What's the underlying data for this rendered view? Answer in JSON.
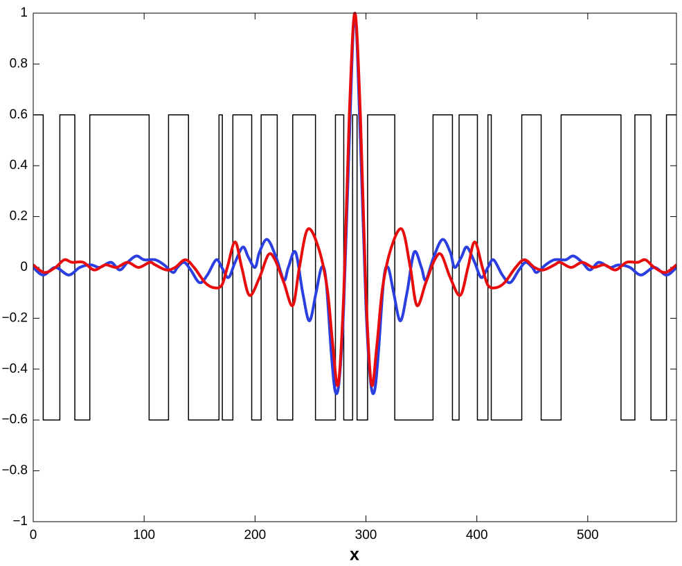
{
  "chart_data": {
    "type": "line",
    "xlabel": "x",
    "xlim": [
      0,
      580
    ],
    "ylim": [
      -1,
      1
    ],
    "xticks": [
      0,
      100,
      200,
      300,
      400,
      500
    ],
    "yticks": [
      {
        "value": -1,
        "label": "−1"
      },
      {
        "value": -0.8,
        "label": "−0.8"
      },
      {
        "value": -0.6,
        "label": "−0.6"
      },
      {
        "value": -0.4,
        "label": "−0.4"
      },
      {
        "value": -0.2,
        "label": "−0.2"
      },
      0,
      0.2,
      0.4,
      0.6,
      0.8,
      1
    ],
    "grid": false,
    "series": [
      {
        "color": "#000000",
        "width": 1.5,
        "smooth": false,
        "x": [
          0,
          9,
          9,
          24,
          24,
          37.5,
          37.5,
          51,
          51,
          104.5,
          104.5,
          122,
          122,
          140,
          140,
          167.5,
          167.5,
          170.5,
          170.5,
          180,
          180,
          197,
          197,
          205.5,
          205.5,
          220,
          220,
          234,
          234,
          254.5,
          254.5,
          272.5,
          272.5,
          280,
          280,
          288,
          288,
          292,
          292,
          301.5,
          301.5,
          326,
          326,
          360.5,
          360.5,
          378,
          378,
          384,
          384,
          400.5,
          400.5,
          410,
          410,
          413,
          413,
          440.5,
          440.5,
          458,
          458,
          476,
          476,
          530,
          530,
          542.5,
          542.5,
          557,
          557,
          571,
          571,
          580
        ],
        "values": [
          0.6,
          0.6,
          -0.6,
          -0.6,
          0.6,
          0.6,
          -0.6,
          -0.6,
          0.6,
          0.6,
          -0.6,
          -0.6,
          0.6,
          0.6,
          -0.6,
          -0.6,
          0.6,
          0.6,
          -0.6,
          -0.6,
          0.6,
          0.6,
          -0.6,
          -0.6,
          0.6,
          0.6,
          -0.6,
          -0.6,
          0.6,
          0.6,
          -0.6,
          -0.6,
          0.6,
          0.6,
          -0.6,
          -0.6,
          0.6,
          0.6,
          -0.6,
          -0.6,
          0.6,
          0.6,
          -0.6,
          -0.6,
          0.6,
          0.6,
          -0.6,
          -0.6,
          0.6,
          0.6,
          -0.6,
          -0.6,
          0.6,
          0.6,
          -0.6,
          -0.6,
          0.6,
          0.6,
          -0.6,
          -0.6,
          0.6,
          0.6,
          -0.6,
          -0.6,
          0.6,
          0.6,
          -0.6,
          -0.6,
          0.6,
          0.6
        ]
      },
      {
        "color": "#2b3fe0",
        "width": 4,
        "smooth": true,
        "x": [
          0,
          9,
          20,
          32,
          42,
          52,
          60,
          70,
          78,
          85,
          93,
          100,
          110,
          118,
          126,
          130,
          136,
          142,
          150,
          157,
          165,
          170,
          176,
          182,
          189,
          194,
          200,
          204,
          211,
          219,
          226,
          230,
          236.5,
          243,
          249,
          255,
          260,
          264,
          269,
          272.5,
          276,
          280,
          285,
          290,
          295,
          300,
          304,
          307.5,
          311,
          316,
          320,
          325,
          331,
          337,
          343.5,
          350,
          354,
          361,
          369,
          376,
          380,
          386,
          391,
          398,
          404,
          410,
          415,
          423,
          430,
          438,
          444,
          450,
          454,
          462,
          470,
          480,
          487,
          495,
          502,
          510,
          520,
          528,
          538,
          548,
          560,
          571,
          580
        ],
        "values": [
          0,
          -0.03,
          0,
          -0.03,
          0,
          0.01,
          0,
          0.02,
          -0.01,
          0.02,
          0.045,
          0.03,
          0.03,
          0.01,
          -0.02,
          0,
          0.02,
          -0.01,
          -0.06,
          -0.03,
          0.03,
          0,
          -0.04,
          0.02,
          0.08,
          0.04,
          0,
          0.06,
          0.11,
          0.04,
          -0.05,
          0,
          0.06,
          -0.1,
          -0.21,
          -0.1,
          0,
          -0.05,
          -0.35,
          -0.49,
          -0.44,
          -0.15,
          0.5,
          1,
          0.5,
          -0.15,
          -0.44,
          -0.49,
          -0.35,
          -0.05,
          0,
          -0.1,
          -0.21,
          -0.1,
          0.06,
          0,
          -0.05,
          0.04,
          0.11,
          0.06,
          0,
          0.04,
          0.08,
          0.02,
          -0.04,
          0,
          0.03,
          -0.03,
          -0.06,
          -0.01,
          0.02,
          0,
          -0.02,
          0.01,
          0.03,
          0.03,
          0.045,
          0.02,
          -0.01,
          0.02,
          0,
          0.01,
          0,
          -0.03,
          0,
          -0.03,
          0
        ]
      },
      {
        "color": "#e80d0d",
        "width": 4,
        "smooth": true,
        "x": [
          0,
          10,
          20,
          28,
          35,
          45,
          55,
          65,
          75,
          85,
          95,
          105,
          110,
          120,
          128,
          137,
          145,
          155,
          163,
          170,
          175,
          182,
          188,
          195,
          204,
          212,
          218,
          226,
          234,
          240,
          247.5,
          257,
          265,
          270,
          275,
          280,
          285,
          290,
          295,
          300,
          305,
          310,
          315,
          323,
          332.5,
          340,
          346,
          354,
          362,
          368,
          376,
          385,
          392,
          398,
          405,
          410,
          417,
          425,
          435,
          443,
          452,
          460,
          470,
          475,
          485,
          495,
          505,
          515,
          525,
          535,
          545,
          552,
          560,
          570,
          580
        ],
        "values": [
          0.01,
          -0.02,
          0,
          0.03,
          0.02,
          0.02,
          -0.01,
          0.01,
          0,
          0.02,
          0,
          0.02,
          0.01,
          -0.01,
          0,
          0.03,
          0,
          -0.06,
          -0.08,
          -0.07,
          0,
          0.1,
          0,
          -0.11,
          -0.04,
          0.05,
          0.03,
          -0.06,
          -0.15,
          0,
          0.15,
          0.08,
          -0.08,
          -0.3,
          -0.46,
          -0.1,
          0.6,
          1,
          0.6,
          -0.1,
          -0.46,
          -0.3,
          -0.08,
          0.08,
          0.15,
          0,
          -0.15,
          -0.06,
          0.03,
          0.05,
          -0.04,
          -0.11,
          0,
          0.1,
          0,
          -0.07,
          -0.08,
          -0.06,
          0,
          0.03,
          0,
          -0.01,
          0.01,
          0.02,
          0,
          0.02,
          0,
          0.01,
          -0.01,
          0.02,
          0.02,
          0.03,
          0,
          -0.02,
          0.01
        ]
      }
    ]
  }
}
